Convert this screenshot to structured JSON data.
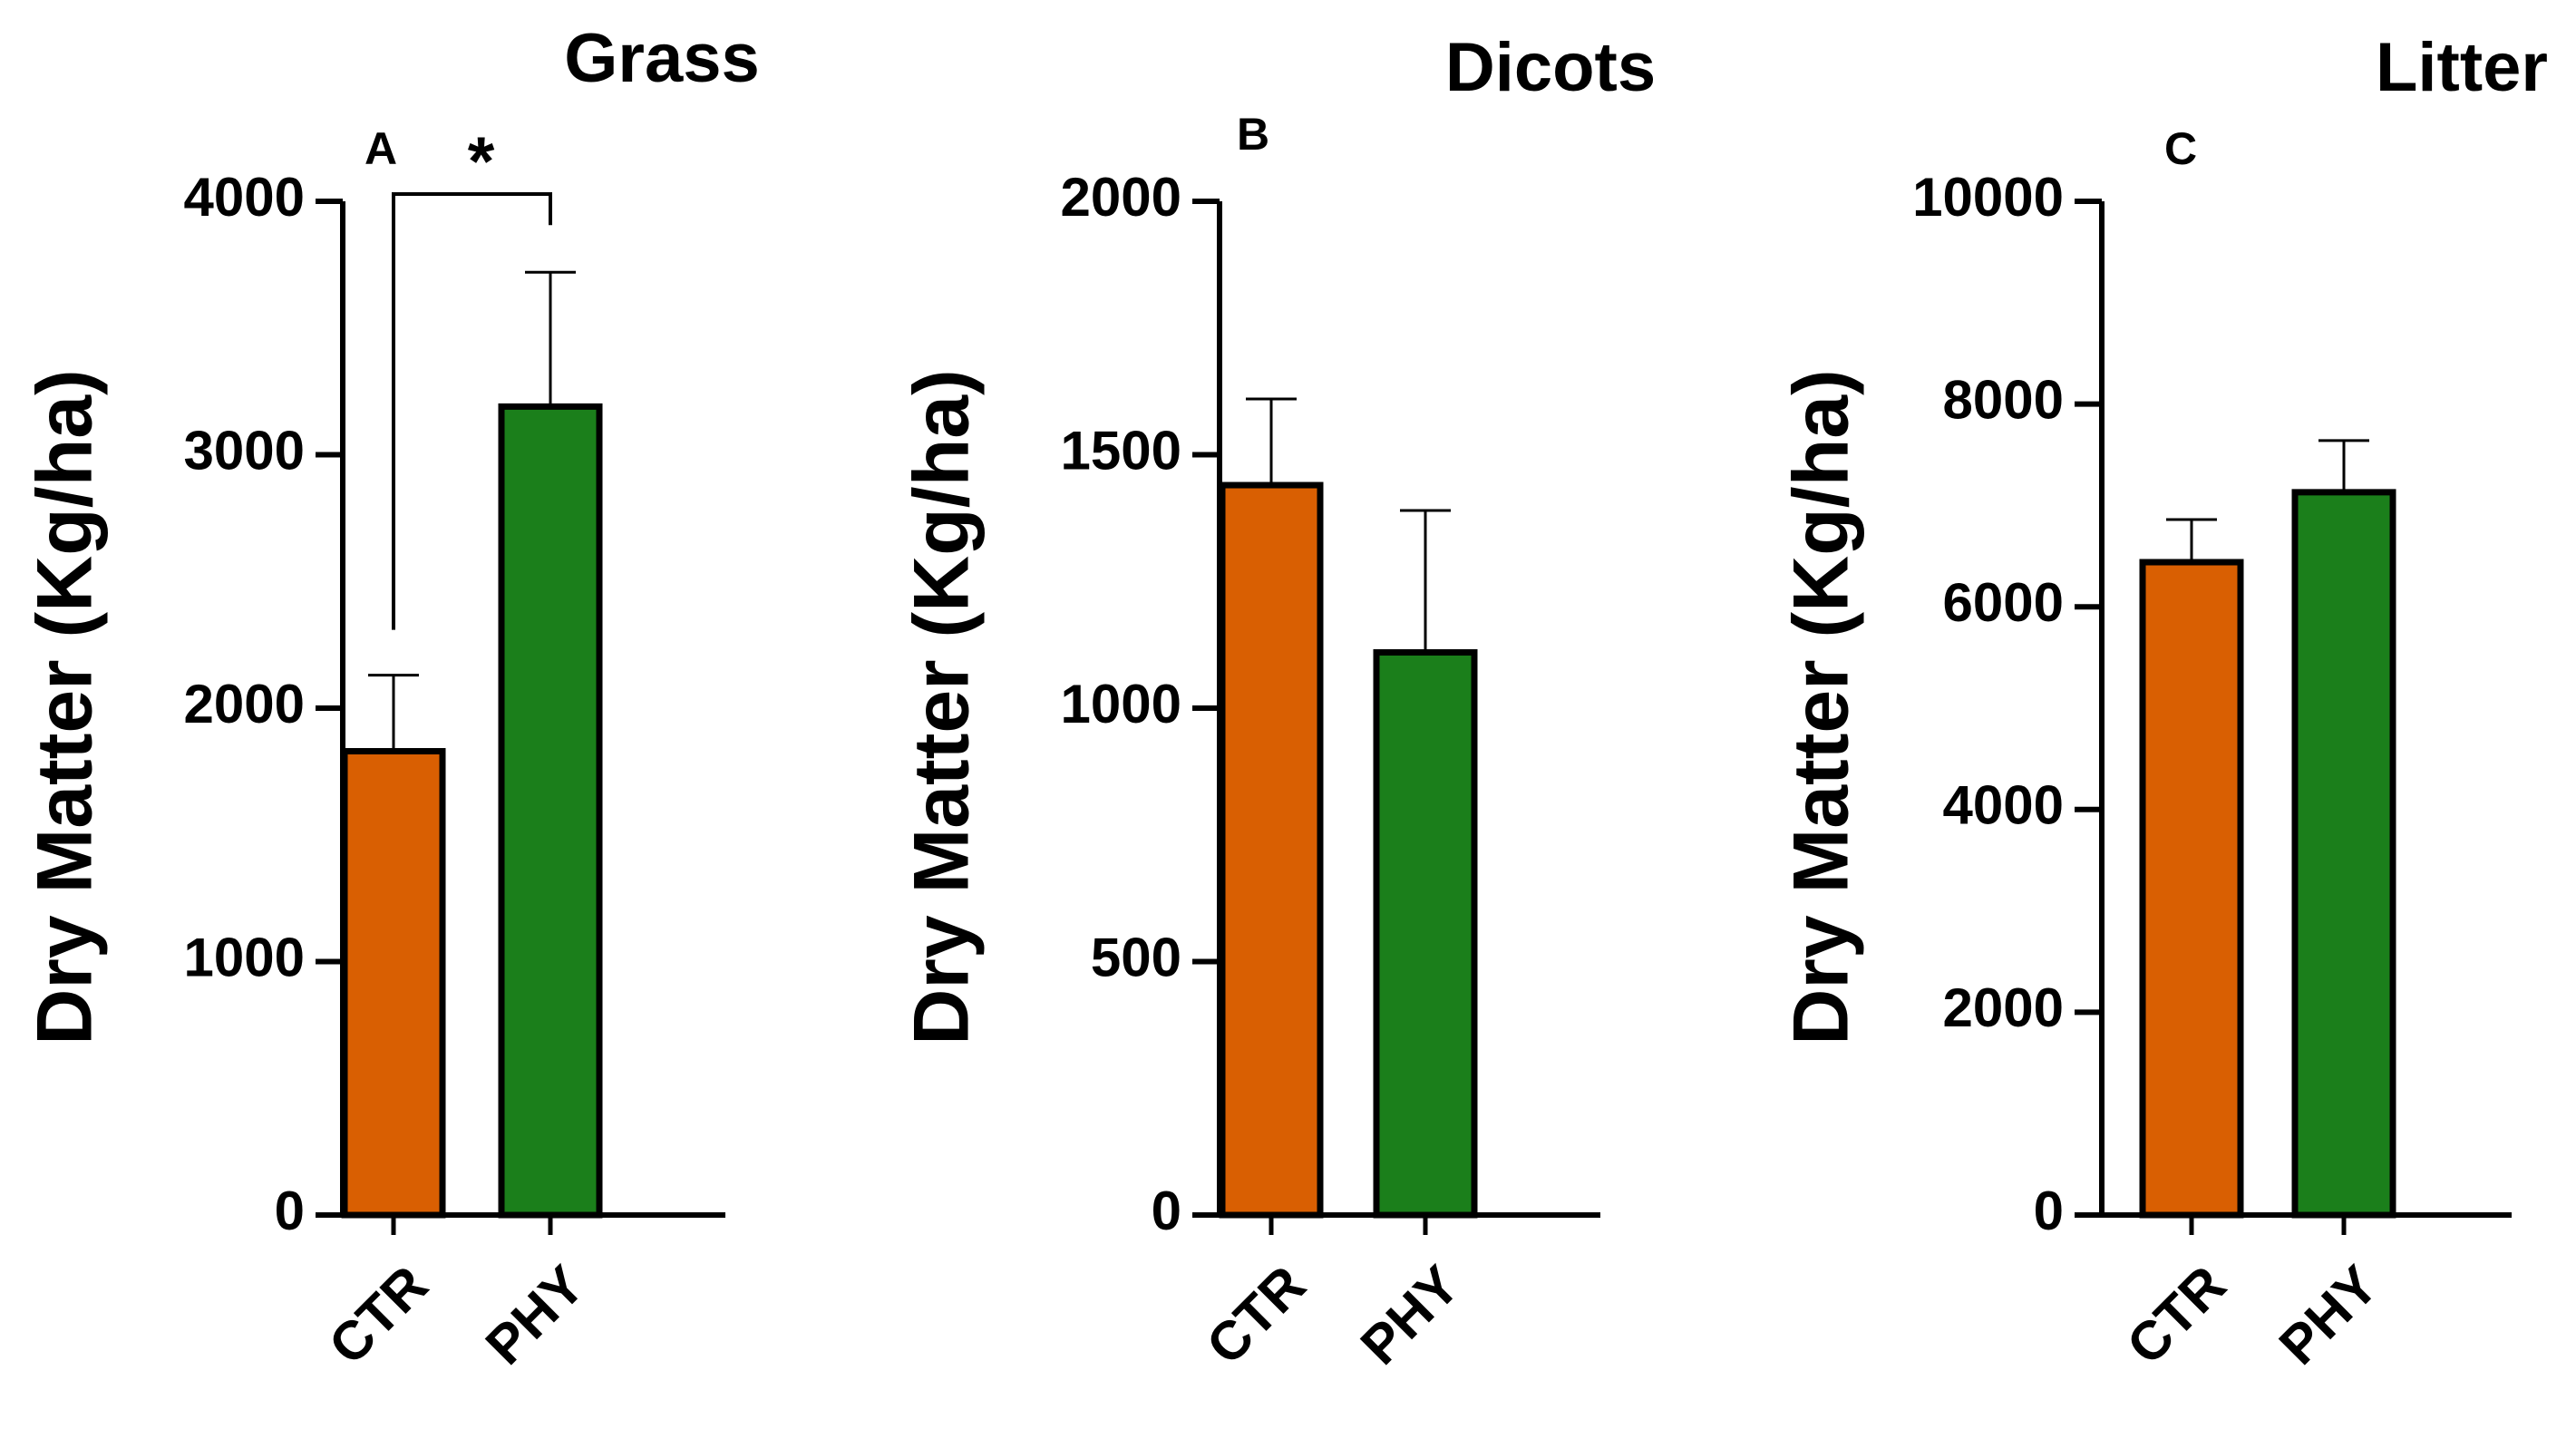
{
  "chart_data": [
    {
      "type": "bar",
      "panel": "A",
      "title": "Grass",
      "ylabel": "Dry  Matter  (Kg/ha)",
      "xlabel": "",
      "categories": [
        "CTR",
        "PHY"
      ],
      "values": [
        1830,
        3190
      ],
      "errors": [
        300,
        530
      ],
      "colors": [
        "#D95F02",
        "#1B7F1B"
      ],
      "ylim": [
        0,
        4000
      ],
      "yticks": [
        0,
        1000,
        2000,
        3000,
        4000
      ],
      "significance": {
        "between": [
          "CTR",
          "PHY"
        ],
        "label": "*"
      },
      "grid": false,
      "legend": "none"
    },
    {
      "type": "bar",
      "panel": "B",
      "title": "Dicots",
      "ylabel": "Dry  Matter  (Kg/ha)",
      "xlabel": "",
      "categories": [
        "CTR",
        "PHY"
      ],
      "values": [
        1440,
        1110
      ],
      "errors": [
        170,
        280
      ],
      "colors": [
        "#D95F02",
        "#1B7F1B"
      ],
      "ylim": [
        0,
        2000
      ],
      "yticks": [
        0,
        500,
        1000,
        1500,
        2000
      ],
      "grid": false,
      "legend": "none"
    },
    {
      "type": "bar",
      "panel": "C",
      "title": "Litter",
      "ylabel": "Dry  Matter  (Kg/ha)",
      "xlabel": "",
      "categories": [
        "CTR",
        "PHY"
      ],
      "values": [
        6440,
        7130
      ],
      "errors": [
        420,
        510
      ],
      "colors": [
        "#D95F02",
        "#1B7F1B"
      ],
      "ylim": [
        0,
        10000
      ],
      "yticks": [
        0,
        2000,
        4000,
        6000,
        8000,
        10000
      ],
      "grid": false,
      "legend": "none"
    }
  ]
}
